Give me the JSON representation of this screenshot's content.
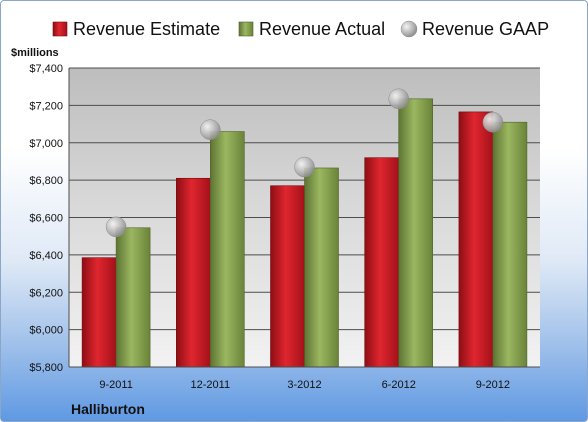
{
  "chart_data": {
    "type": "bar",
    "title": "",
    "company": "Halliburton",
    "ylabel": "$millions",
    "ylim": [
      5800,
      7400
    ],
    "yticks": [
      5800,
      6000,
      6200,
      6400,
      6600,
      6800,
      7000,
      7200,
      7400
    ],
    "ytick_labels": [
      "$5,800",
      "$6,000",
      "$6,200",
      "$6,400",
      "$6,600",
      "$6,800",
      "$7,000",
      "$7,200",
      "$7,400"
    ],
    "categories": [
      "9-2011",
      "12-2011",
      "3-2012",
      "6-2012",
      "9-2012"
    ],
    "grid": true,
    "legend_position": "top",
    "series": [
      {
        "name": "Revenue Estimate",
        "kind": "bar",
        "color": "#c0161f",
        "values": [
          6385,
          6810,
          6770,
          6920,
          7165
        ]
      },
      {
        "name": "Revenue Actual",
        "kind": "bar",
        "color": "#7f9a48",
        "values": [
          6545,
          7060,
          6865,
          7235,
          7110
        ]
      },
      {
        "name": "Revenue GAAP",
        "kind": "marker",
        "color": "#b8b8b8",
        "values": [
          6550,
          7070,
          6870,
          7235,
          7110
        ]
      }
    ]
  }
}
